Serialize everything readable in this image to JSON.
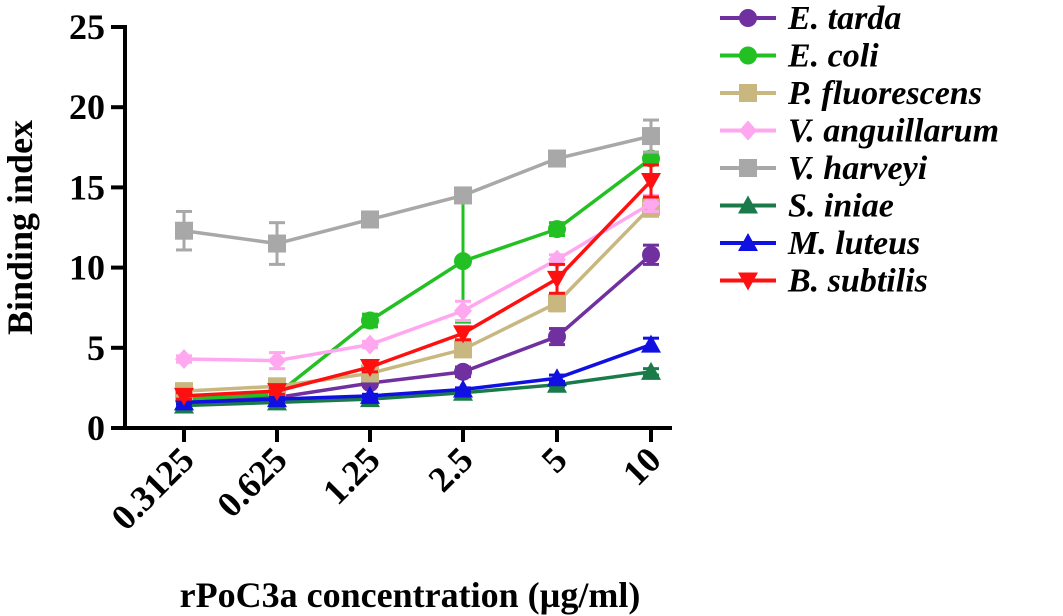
{
  "chart_data": {
    "type": "line",
    "title": "",
    "xlabel": "rPoC3a concentration (µg/ml)",
    "ylabel": "Binding index",
    "categories": [
      "0.3125",
      "0.625",
      "1.25",
      "2.5",
      "5",
      "10"
    ],
    "ylim": [
      0,
      25
    ],
    "yticks": [
      "0",
      "5",
      "10",
      "15",
      "20",
      "25"
    ],
    "series": [
      {
        "name": "E. tarda",
        "color": "#7030A0",
        "marker": "circle",
        "values": [
          1.8,
          1.9,
          2.8,
          3.5,
          5.7,
          10.8
        ],
        "errors": [
          0.2,
          0.2,
          0.2,
          0.3,
          0.5,
          0.6
        ]
      },
      {
        "name": "E. coli",
        "color": "#22C022",
        "marker": "circle",
        "values": [
          1.8,
          2.1,
          6.7,
          10.4,
          12.4,
          16.8
        ],
        "errors": [
          0.2,
          0.2,
          0.4,
          3.8,
          0.4,
          0.4
        ]
      },
      {
        "name": "P. fluorescens",
        "color": "#C8B880",
        "marker": "square",
        "values": [
          2.3,
          2.6,
          3.4,
          4.9,
          7.8,
          13.8
        ],
        "errors": [
          0.2,
          0.2,
          0.2,
          0.3,
          0.5,
          0.6
        ]
      },
      {
        "name": "V. anguillarum",
        "color": "#FFA8F0",
        "marker": "diamond",
        "values": [
          4.3,
          4.2,
          5.2,
          7.3,
          10.5,
          14.0
        ],
        "errors": [
          0.2,
          0.5,
          0.2,
          0.6,
          0.3,
          0.5
        ]
      },
      {
        "name": "V. harveyi",
        "color": "#A8A8A8",
        "marker": "square",
        "values": [
          12.3,
          11.5,
          13.0,
          14.5,
          16.8,
          18.2
        ],
        "errors": [
          1.2,
          1.3,
          0.3,
          0.3,
          0.3,
          1.0
        ]
      },
      {
        "name": "S. iniae",
        "color": "#1B7A4A",
        "marker": "triangle-up",
        "values": [
          1.4,
          1.6,
          1.8,
          2.2,
          2.7,
          3.5
        ],
        "errors": [
          0.1,
          0.1,
          0.1,
          0.1,
          0.1,
          0.2
        ]
      },
      {
        "name": "M. luteus",
        "color": "#1010E0",
        "marker": "triangle-up",
        "values": [
          1.6,
          1.8,
          2.0,
          2.4,
          3.1,
          5.2
        ],
        "errors": [
          0.1,
          0.1,
          0.1,
          0.1,
          0.2,
          0.4
        ]
      },
      {
        "name": "B. subtilis",
        "color": "#FF1010",
        "marker": "triangle-down",
        "values": [
          2.0,
          2.3,
          3.8,
          5.9,
          9.3,
          15.4
        ],
        "errors": [
          0.2,
          0.2,
          0.3,
          0.4,
          0.9,
          1.0
        ]
      }
    ],
    "legend_position": "right"
  }
}
